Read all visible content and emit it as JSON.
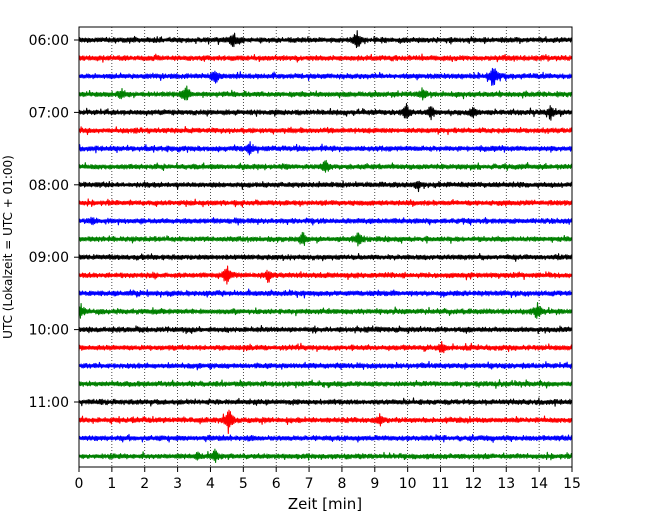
{
  "chart_data": {
    "type": "line",
    "title": "",
    "xlabel": "Zeit  [min]",
    "ylabel": "UTC (Lokalzeit = UTC + 01:00)",
    "xlim": [
      0,
      15
    ],
    "x_ticks": [
      "0",
      "1",
      "2",
      "3",
      "4",
      "5",
      "6",
      "7",
      "8",
      "9",
      "10",
      "11",
      "12",
      "13",
      "14",
      "15"
    ],
    "vertical_grid": "dotted, every minute",
    "y_ticks": [
      {
        "label": "06:00",
        "trace_index": 0
      },
      {
        "label": "07:00",
        "trace_index": 4
      },
      {
        "label": "08:00",
        "trace_index": 8
      },
      {
        "label": "09:00",
        "trace_index": 12
      },
      {
        "label": "10:00",
        "trace_index": 16
      },
      {
        "label": "11:00",
        "trace_index": 20
      }
    ],
    "trace_colors": [
      "#000000",
      "#ff0000",
      "#0000ff",
      "#008000"
    ],
    "traces": [
      {
        "start": "06:00",
        "color": "#000000",
        "events": [
          [
            4.7,
            0.8
          ],
          [
            8.45,
            1.0
          ]
        ]
      },
      {
        "start": "06:15",
        "color": "#ff0000",
        "events": []
      },
      {
        "start": "06:30",
        "color": "#0000ff",
        "events": [
          [
            4.15,
            0.9
          ],
          [
            12.6,
            1.6
          ]
        ]
      },
      {
        "start": "06:45",
        "color": "#008000",
        "events": [
          [
            1.3,
            0.5
          ],
          [
            3.25,
            1.1
          ],
          [
            10.45,
            0.6
          ]
        ]
      },
      {
        "start": "07:00",
        "color": "#000000",
        "events": [
          [
            9.95,
            0.9
          ],
          [
            10.7,
            0.8
          ],
          [
            12.0,
            0.6
          ],
          [
            14.35,
            0.7
          ]
        ]
      },
      {
        "start": "07:15",
        "color": "#ff0000",
        "events": []
      },
      {
        "start": "07:30",
        "color": "#0000ff",
        "events": [
          [
            5.2,
            0.6
          ]
        ]
      },
      {
        "start": "07:45",
        "color": "#008000",
        "events": [
          [
            7.5,
            0.8
          ]
        ]
      },
      {
        "start": "08:00",
        "color": "#000000",
        "events": [
          [
            10.3,
            0.5
          ]
        ]
      },
      {
        "start": "08:15",
        "color": "#ff0000",
        "events": []
      },
      {
        "start": "08:30",
        "color": "#0000ff",
        "events": [
          [
            0.4,
            0.4
          ]
        ]
      },
      {
        "start": "08:45",
        "color": "#008000",
        "events": [
          [
            6.8,
            0.7
          ],
          [
            8.5,
            0.8
          ]
        ]
      },
      {
        "start": "09:00",
        "color": "#000000",
        "events": []
      },
      {
        "start": "09:15",
        "color": "#ff0000",
        "events": [
          [
            4.5,
            1.1
          ],
          [
            5.75,
            0.6
          ]
        ]
      },
      {
        "start": "09:30",
        "color": "#0000ff",
        "events": []
      },
      {
        "start": "09:45",
        "color": "#008000",
        "events": [
          [
            0.05,
            0.7
          ],
          [
            13.95,
            0.9
          ]
        ]
      },
      {
        "start": "10:00",
        "color": "#000000",
        "events": []
      },
      {
        "start": "10:15",
        "color": "#ff0000",
        "events": [
          [
            11.05,
            0.6
          ]
        ]
      },
      {
        "start": "10:30",
        "color": "#0000ff",
        "events": []
      },
      {
        "start": "10:45",
        "color": "#008000",
        "events": []
      },
      {
        "start": "11:00",
        "color": "#000000",
        "events": []
      },
      {
        "start": "11:15",
        "color": "#ff0000",
        "events": [
          [
            4.55,
            1.6
          ],
          [
            9.15,
            0.6
          ]
        ]
      },
      {
        "start": "11:30",
        "color": "#0000ff",
        "events": []
      },
      {
        "start": "11:45",
        "color": "#008000",
        "events": [
          [
            4.15,
            0.7
          ],
          [
            3.6,
            0.4
          ]
        ]
      }
    ]
  }
}
